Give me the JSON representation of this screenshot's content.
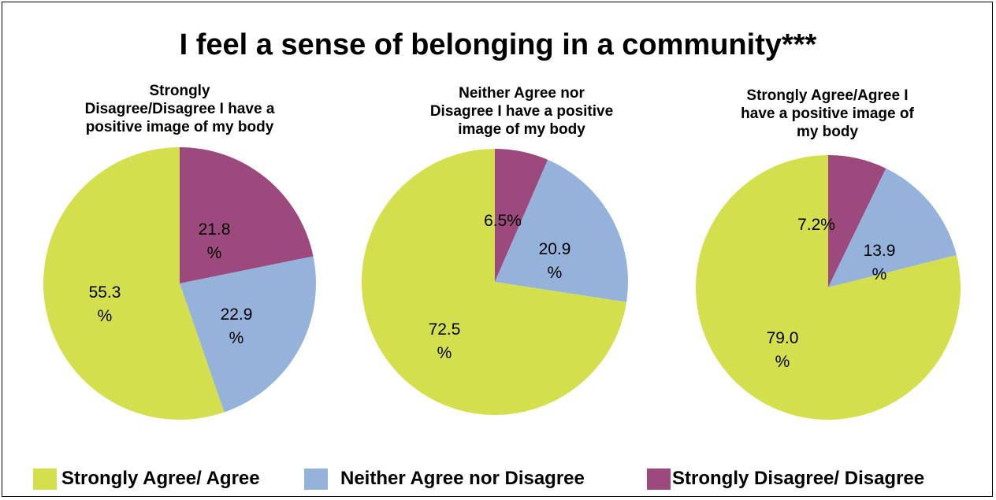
{
  "title": "I feel a sense of belonging in a community***",
  "colors": {
    "Strongly Agree/ Agree": "#d4df4e",
    "Neither Agree nor Disagree": "#94b2da",
    "Strongly Disagree/ Disagree": "#9c4a7e"
  },
  "legend": [
    {
      "label": "Strongly Agree/ Agree",
      "color": "#d4df4e"
    },
    {
      "label": "Neither Agree nor Disagree",
      "color": "#94b2da"
    },
    {
      "label": "Strongly Disagree/ Disagree",
      "color": "#9c4a7e"
    }
  ],
  "chart_data": [
    {
      "type": "pie",
      "title": "Strongly Disagree/Disagree I have a positive image of my body",
      "title_lines": [
        "Strongly",
        "Disagree/Disagree I have a",
        "positive image of my body"
      ],
      "start": "top, clockwise",
      "slices": [
        {
          "label": "Strongly Disagree/ Disagree",
          "value": 21.8,
          "display": [
            "21.8",
            "%"
          ]
        },
        {
          "label": "Neither Agree nor Disagree",
          "value": 22.9,
          "display": [
            "22.9",
            "%"
          ]
        },
        {
          "label": "Strongly Agree/ Agree",
          "value": 55.3,
          "display": [
            "55.3",
            "%"
          ]
        }
      ]
    },
    {
      "type": "pie",
      "title": "Neither Agree nor Disagree I have a positive image of my body",
      "title_lines": [
        "Neither Agree nor",
        "Disagree I have a positive",
        "image of my body"
      ],
      "start": "top, clockwise",
      "slices": [
        {
          "label": "Strongly Disagree/ Disagree",
          "value": 6.5,
          "display": [
            "6.5%"
          ]
        },
        {
          "label": "Neither Agree nor Disagree",
          "value": 20.9,
          "display": [
            "20.9",
            "%"
          ]
        },
        {
          "label": "Strongly Agree/ Agree",
          "value": 72.5,
          "display": [
            "72.5",
            "%"
          ]
        }
      ]
    },
    {
      "type": "pie",
      "title": "Strongly Agree/Agree I have a positive image of my body",
      "title_lines": [
        "Strongly Agree/Agree I",
        "have a positive image of",
        "my body"
      ],
      "start": "top, clockwise",
      "slices": [
        {
          "label": "Strongly Disagree/ Disagree",
          "value": 7.2,
          "display": [
            "7.2%"
          ]
        },
        {
          "label": "Neither Agree nor Disagree",
          "value": 13.9,
          "display": [
            "13.9",
            "%"
          ]
        },
        {
          "label": "Strongly Agree/ Agree",
          "value": 79.0,
          "display": [
            "79.0",
            "%"
          ]
        }
      ]
    }
  ]
}
